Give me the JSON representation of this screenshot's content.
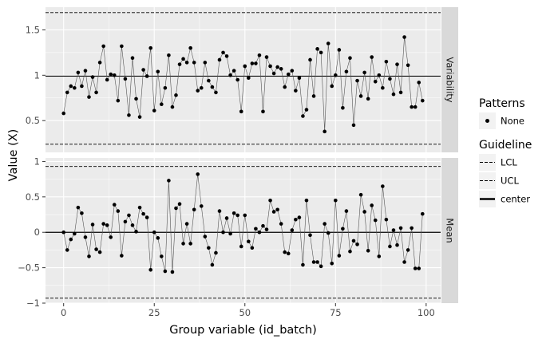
{
  "chart_data": {
    "type": "line",
    "xlabel": "Group variable (id_batch)",
    "ylabel": "Value (X)",
    "x_ticks": [
      0,
      25,
      50,
      75,
      100
    ],
    "xlim": [
      -5,
      104
    ],
    "panels": [
      {
        "strip": "Variability",
        "ylim": [
          0.15,
          1.75
        ],
        "y_ticks": [
          0.5,
          1,
          1.5
        ],
        "y_tick_labels": [
          "0.5",
          "1",
          "1.5"
        ],
        "center": 0.99,
        "ucl": 1.69,
        "lcl": 0.24,
        "values": [
          0.58,
          0.81,
          0.88,
          0.86,
          1.03,
          0.88,
          1.05,
          0.76,
          0.98,
          0.81,
          1.14,
          1.32,
          0.95,
          1.01,
          1.0,
          0.72,
          1.32,
          0.96,
          0.56,
          1.19,
          0.74,
          0.54,
          1.06,
          0.99,
          1.3,
          0.61,
          1.04,
          0.68,
          0.86,
          1.22,
          0.65,
          0.78,
          1.12,
          1.18,
          1.14,
          1.3,
          1.14,
          0.83,
          0.86,
          1.14,
          0.94,
          0.87,
          0.81,
          1.17,
          1.25,
          1.21,
          1.0,
          1.05,
          0.95,
          0.6,
          1.1,
          0.97,
          1.13,
          1.13,
          1.22,
          0.6,
          1.2,
          1.1,
          1.02,
          1.09,
          1.07,
          0.87,
          1.01,
          1.05,
          0.83,
          0.97,
          0.55,
          0.62,
          1.17,
          0.77,
          1.29,
          1.25,
          0.38,
          1.35,
          0.88,
          1.0,
          1.28,
          0.64,
          1.04,
          1.19,
          0.45,
          0.94,
          0.77,
          1.03,
          0.74,
          1.2,
          0.93,
          1.0,
          0.86,
          1.15,
          0.96,
          0.79,
          1.12,
          0.81,
          1.42,
          1.11,
          0.65,
          0.65,
          0.92,
          0.72
        ]
      },
      {
        "strip": "Mean",
        "ylim": [
          -1.0,
          1.05
        ],
        "y_ticks": [
          -1,
          -0.5,
          0,
          0.5,
          1
        ],
        "y_tick_labels": [
          "−1",
          "−0.5",
          "0",
          "0.5",
          "1"
        ],
        "center": 0.0,
        "ucl": 0.93,
        "lcl": -0.93,
        "values": [
          0.0,
          -0.25,
          -0.1,
          -0.02,
          0.35,
          0.27,
          -0.07,
          -0.34,
          0.11,
          -0.24,
          -0.28,
          0.12,
          0.1,
          -0.07,
          0.39,
          0.3,
          -0.33,
          0.15,
          0.24,
          0.1,
          0.01,
          0.35,
          0.26,
          0.21,
          -0.53,
          0.0,
          -0.08,
          -0.34,
          -0.55,
          0.73,
          -0.56,
          0.34,
          0.4,
          -0.16,
          0.12,
          -0.16,
          0.32,
          0.82,
          0.37,
          -0.06,
          -0.22,
          -0.46,
          -0.29,
          0.3,
          0.0,
          0.2,
          -0.02,
          0.27,
          0.24,
          -0.2,
          0.24,
          -0.13,
          -0.22,
          0.05,
          0.0,
          0.09,
          0.04,
          0.45,
          0.29,
          0.32,
          0.12,
          -0.28,
          -0.3,
          0.03,
          0.18,
          0.21,
          -0.46,
          0.45,
          -0.04,
          -0.42,
          -0.42,
          -0.48,
          0.12,
          -0.01,
          -0.44,
          0.45,
          -0.33,
          0.05,
          0.3,
          -0.27,
          -0.12,
          -0.17,
          0.53,
          0.29,
          -0.26,
          0.38,
          0.17,
          -0.34,
          0.65,
          0.18,
          -0.2,
          0.03,
          -0.18,
          0.06,
          -0.42,
          -0.25,
          0.06,
          -0.51,
          -0.51,
          0.26
        ]
      }
    ],
    "legend": {
      "placement": "right",
      "groups": [
        {
          "title": "Patterns",
          "items": [
            {
              "label": "None",
              "key": "point"
            }
          ]
        },
        {
          "title": "Guideline",
          "items": [
            {
              "label": "LCL",
              "key": "dashed"
            },
            {
              "label": "UCL",
              "key": "dashed"
            },
            {
              "label": "center",
              "key": "solid"
            }
          ]
        }
      ]
    },
    "colors": {
      "panel_bg": "#ebebeb",
      "grid": "#ffffff",
      "strip_bg": "#d9d9d9",
      "ink": "#000000",
      "line": "#555555",
      "tick_text": "#4d4d4d"
    }
  }
}
